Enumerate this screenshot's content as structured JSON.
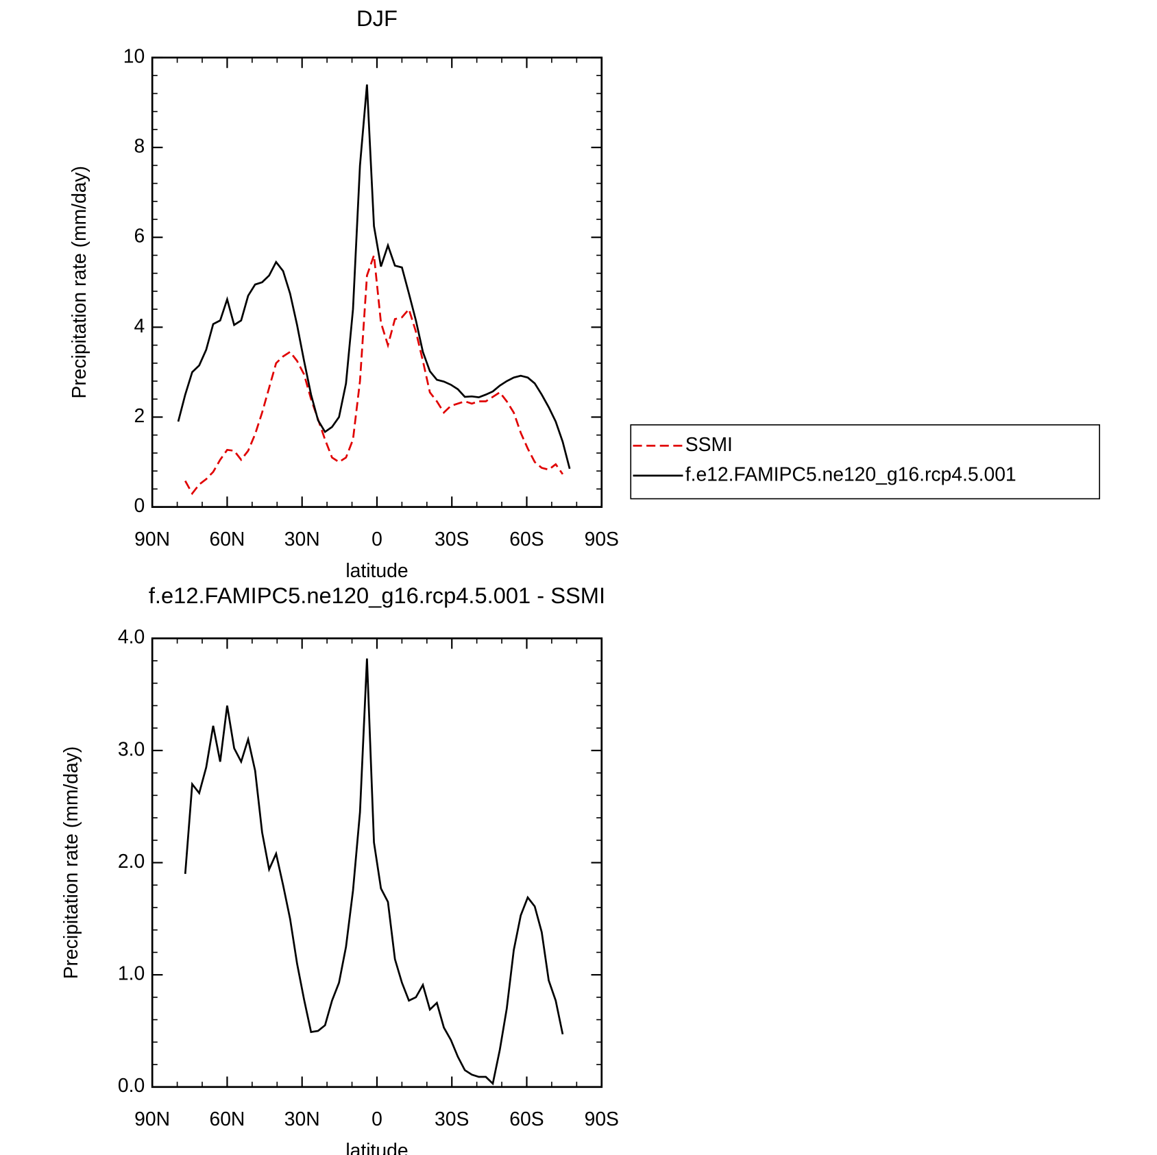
{
  "chart_data": [
    {
      "type": "line",
      "title": "DJF",
      "x_label": "latitude",
      "y_label": "Precipitation rate (mm/day)",
      "x": [
        79.6,
        76.8,
        74,
        71.2,
        68.4,
        65.6,
        62.8,
        60,
        57.2,
        54.4,
        51.6,
        48.8,
        46,
        43.2,
        40.4,
        37.6,
        34.8,
        32,
        29.2,
        26.4,
        23.6,
        20.8,
        18,
        15.2,
        12.4,
        9.6,
        6.8,
        4,
        1.2,
        -1.6,
        -4.4,
        -7.2,
        -10,
        -12.8,
        -15.6,
        -18.4,
        -21.2,
        -24,
        -26.8,
        -29.6,
        -32.4,
        -35.2,
        -38,
        -40.8,
        -43.6,
        -46.4,
        -49.2,
        -52,
        -54.8,
        -57.6,
        -60.4,
        -63.2,
        -66,
        -68.8,
        -71.6,
        -74.4,
        -77.2
      ],
      "series": [
        {
          "name": "SSMI",
          "color": "#e00000",
          "dash": true,
          "values": [
            null,
            0.58,
            0.3,
            0.5,
            0.62,
            0.78,
            1.05,
            1.27,
            1.25,
            1.05,
            1.25,
            1.62,
            2.1,
            2.65,
            3.2,
            3.35,
            3.45,
            3.25,
            2.95,
            2.4,
            1.95,
            1.5,
            1.1,
            1.0,
            1.1,
            1.5,
            2.8,
            5.15,
            5.6,
            4.1,
            3.6,
            4.18,
            4.22,
            4.4,
            3.9,
            3.25,
            2.55,
            2.35,
            2.1,
            2.25,
            2.3,
            2.35,
            2.3,
            2.35,
            2.35,
            2.45,
            2.55,
            2.35,
            2.1,
            1.65,
            1.3,
            1.0,
            0.87,
            0.83,
            0.95,
            0.73,
            null
          ]
        },
        {
          "name": "f.e12.FAMIPC5.ne120_g16.rcp4.5.001",
          "color": "#000000",
          "dash": false,
          "values": [
            1.9,
            2.5,
            3.0,
            3.15,
            3.5,
            4.07,
            4.15,
            4.62,
            4.05,
            4.15,
            4.7,
            4.95,
            5.0,
            5.15,
            5.45,
            5.25,
            4.75,
            4.05,
            3.25,
            2.5,
            1.93,
            1.67,
            1.78,
            2.0,
            2.75,
            4.4,
            7.6,
            9.4,
            6.25,
            5.35,
            5.82,
            5.37,
            5.33,
            4.75,
            4.15,
            3.45,
            3.02,
            2.83,
            2.79,
            2.72,
            2.62,
            2.45,
            2.46,
            2.44,
            2.5,
            2.57,
            2.7,
            2.8,
            2.88,
            2.92,
            2.88,
            2.75,
            2.5,
            2.22,
            1.9,
            1.45,
            0.85
          ]
        }
      ],
      "xlim": [
        90,
        -90
      ],
      "xticks": [
        {
          "value": 90,
          "label": "90N"
        },
        {
          "value": 60,
          "label": "60N"
        },
        {
          "value": 30,
          "label": "30N"
        },
        0,
        {
          "value": -30,
          "label": "30S"
        },
        {
          "value": -60,
          "label": "60S"
        },
        {
          "value": -90,
          "label": "90S"
        }
      ],
      "ylim": [
        0,
        10
      ],
      "yticks": [
        0,
        2,
        4,
        6,
        8,
        10
      ],
      "legend": "right"
    },
    {
      "type": "line",
      "title": "f.e12.FAMIPC5.ne120_g16.rcp4.5.001 - SSMI",
      "x_label": "latitude",
      "y_label": "Precipitation rate (mm/day)",
      "x": [
        76.8,
        74,
        71.2,
        68.4,
        65.6,
        62.8,
        60,
        57.2,
        54.4,
        51.6,
        48.8,
        46,
        43.2,
        40.4,
        37.6,
        34.8,
        32,
        29.2,
        26.4,
        23.6,
        20.8,
        18,
        15.2,
        12.4,
        9.6,
        6.8,
        4,
        1.2,
        -1.6,
        -4.4,
        -7.2,
        -10,
        -12.8,
        -15.6,
        -18.4,
        -21.2,
        -24,
        -26.8,
        -29.6,
        -32.4,
        -35.2,
        -38,
        -40.8,
        -43.6,
        -46.4,
        -49.2,
        -52,
        -54.8,
        -57.6,
        -60.4,
        -63.2,
        -66,
        -68.8,
        -71.6,
        -74.4
      ],
      "series": [
        {
          "color": "#000000",
          "dash": false,
          "values": [
            1.9,
            2.7,
            2.62,
            2.85,
            3.22,
            2.9,
            3.4,
            3.02,
            2.9,
            3.1,
            2.82,
            2.27,
            1.94,
            2.08,
            1.8,
            1.5,
            1.1,
            0.78,
            0.49,
            0.5,
            0.55,
            0.77,
            0.93,
            1.25,
            1.75,
            2.45,
            3.82,
            2.18,
            1.77,
            1.65,
            1.14,
            0.93,
            0.77,
            0.8,
            0.91,
            0.69,
            0.75,
            0.53,
            0.42,
            0.27,
            0.15,
            0.11,
            0.09,
            0.09,
            0.03,
            0.33,
            0.7,
            1.22,
            1.53,
            1.69,
            1.61,
            1.38,
            0.95,
            0.77,
            0.47
          ]
        }
      ],
      "xlim": [
        90,
        -90
      ],
      "xticks": [
        {
          "value": 90,
          "label": "90N"
        },
        {
          "value": 60,
          "label": "60N"
        },
        {
          "value": 30,
          "label": "30N"
        },
        0,
        {
          "value": -30,
          "label": "30S"
        },
        {
          "value": -60,
          "label": "60S"
        },
        {
          "value": -90,
          "label": "90S"
        }
      ],
      "ylim": [
        0,
        4
      ],
      "yticks": [
        {
          "value": 0,
          "label": "0.0"
        },
        {
          "value": 1,
          "label": "1.0"
        },
        {
          "value": 2,
          "label": "2.0"
        },
        {
          "value": 3,
          "label": "3.0"
        },
        {
          "value": 4,
          "label": "4.0"
        }
      ]
    }
  ]
}
